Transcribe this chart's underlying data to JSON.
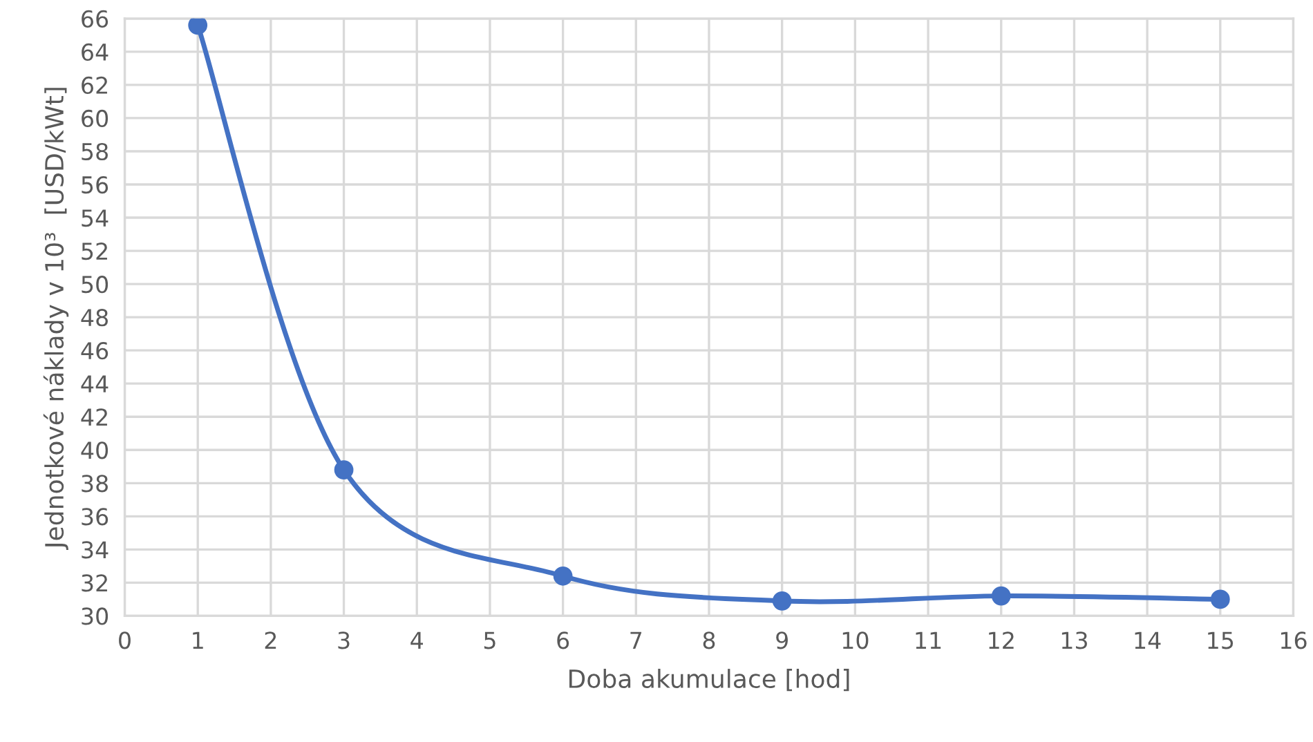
{
  "chart_data": {
    "type": "line",
    "xlabel": "Doba akumulace [hod]",
    "ylabel": "Jednotkové náklady v 10³  [USD/kWt]",
    "x": [
      1,
      3,
      6,
      9,
      12,
      15
    ],
    "series": [
      {
        "color": "#4472c4",
        "values": [
          65.6,
          38.8,
          32.4,
          30.9,
          31.2,
          31.0
        ]
      }
    ],
    "xlim": [
      0,
      16
    ],
    "xticks": [
      0,
      1,
      2,
      3,
      4,
      5,
      6,
      7,
      8,
      9,
      10,
      11,
      12,
      13,
      14,
      15,
      16
    ],
    "ylim": [
      30,
      66
    ],
    "yticks": [
      30,
      32,
      34,
      36,
      38,
      40,
      42,
      44,
      46,
      48,
      50,
      52,
      54,
      56,
      58,
      60,
      62,
      64,
      66
    ],
    "grid": true,
    "marker": "circle",
    "line_style": "solid"
  }
}
